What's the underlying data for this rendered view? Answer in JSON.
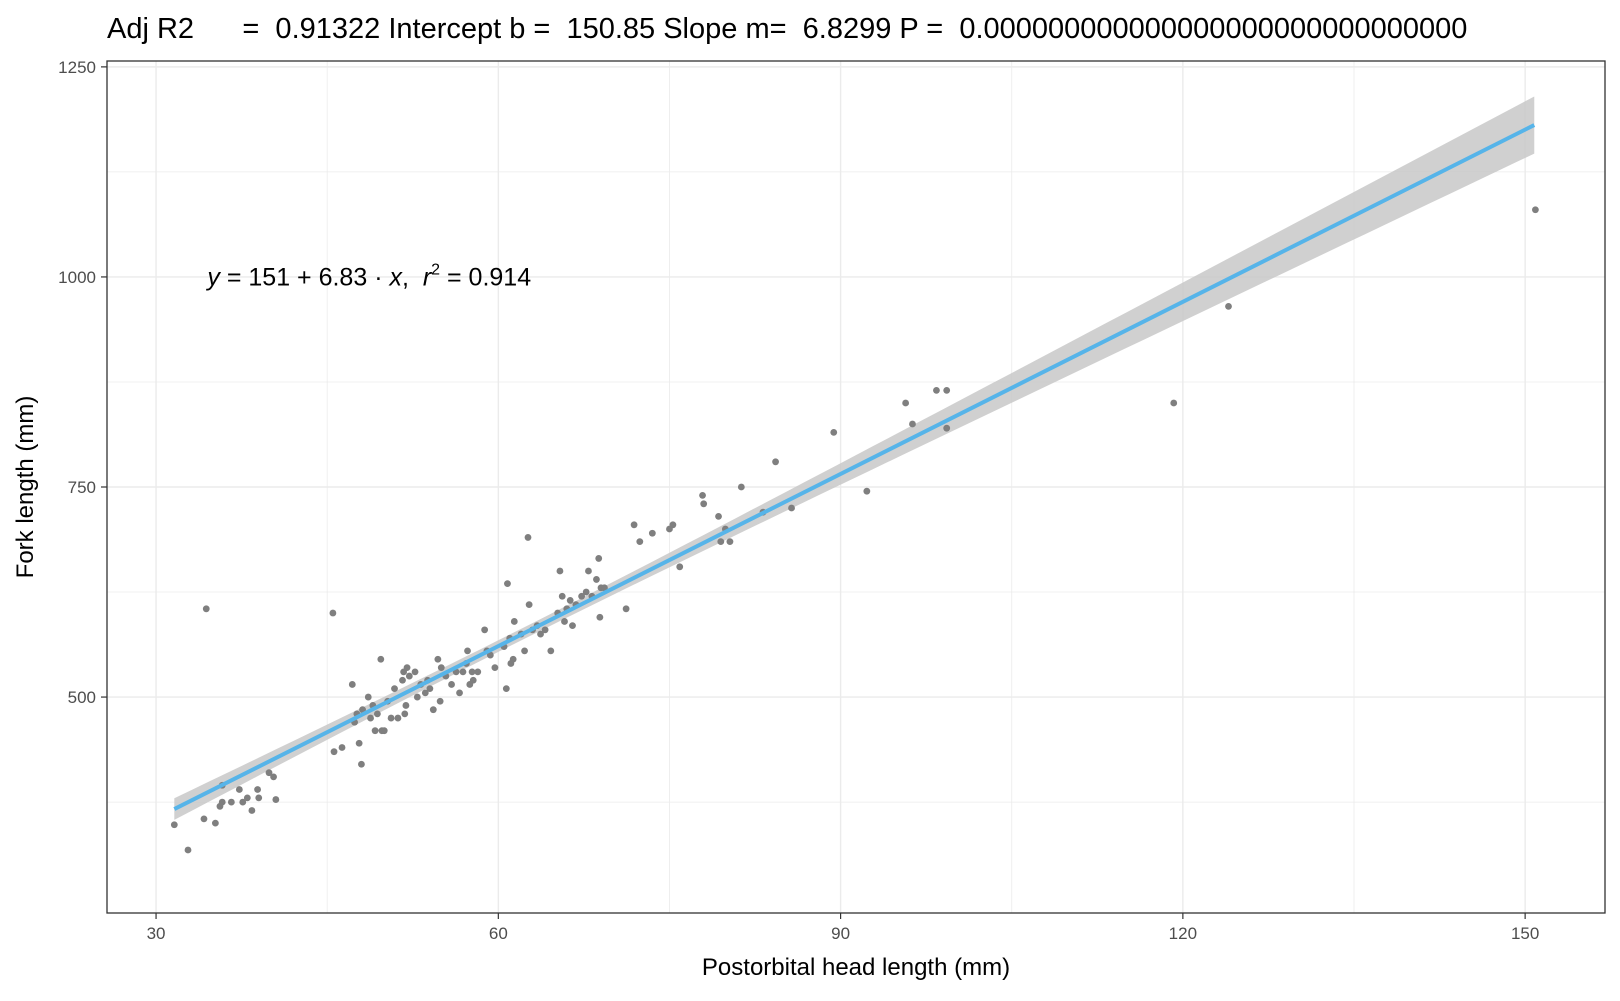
{
  "chart_data": {
    "type": "scatter",
    "title": "Adj R2      =  0.91322 Intercept b =  150.85 Slope m=  6.8299 P =  0.000000000000000000000000000000",
    "xlabel": "Postorbital head length (mm)",
    "ylabel": "Fork length (mm)",
    "xlim": [
      25.7,
      157.0
    ],
    "ylim": [
      243,
      1257
    ],
    "x_ticks": [
      30,
      60,
      90,
      120,
      150
    ],
    "y_ticks": [
      500,
      750,
      1000,
      1250
    ],
    "x_tick_labels": [
      "30",
      "60",
      "90",
      "120",
      "150"
    ],
    "y_tick_labels": [
      "500",
      "750",
      "1000",
      "1250"
    ],
    "x_minor_ticks": [
      45,
      75,
      105,
      135
    ],
    "y_minor_ticks": [
      375,
      625,
      875,
      1125
    ],
    "grid": true,
    "legend": "none",
    "annotation": {
      "y_symbol": "y",
      "eq_rest": " = 151 + 6.83 · ",
      "x_symbol": "x",
      "sep": ",  ",
      "r_symbol": "r",
      "r_exp": "2",
      "r_value": " = 0.914",
      "x": 34.5,
      "y": 990
    },
    "fit": {
      "intercept": 150.85,
      "slope": 6.8299,
      "x_range": [
        31.6,
        150.8
      ]
    },
    "colors": {
      "points": "#7f7f7f",
      "fit_line": "#56b4e9",
      "ribbon": "#c8c8c8",
      "grid": "#ebebeb",
      "panel_border": "#333333"
    },
    "points": [
      {
        "x": 31.6,
        "y": 348
      },
      {
        "x": 32.8,
        "y": 318
      },
      {
        "x": 34.2,
        "y": 355
      },
      {
        "x": 34.4,
        "y": 605
      },
      {
        "x": 35.2,
        "y": 350
      },
      {
        "x": 35.6,
        "y": 370
      },
      {
        "x": 35.8,
        "y": 375
      },
      {
        "x": 35.8,
        "y": 395
      },
      {
        "x": 36.6,
        "y": 375
      },
      {
        "x": 37.3,
        "y": 390
      },
      {
        "x": 37.6,
        "y": 375
      },
      {
        "x": 38.0,
        "y": 380
      },
      {
        "x": 38.4,
        "y": 365
      },
      {
        "x": 38.9,
        "y": 390
      },
      {
        "x": 39.0,
        "y": 380
      },
      {
        "x": 39.9,
        "y": 410
      },
      {
        "x": 40.3,
        "y": 405
      },
      {
        "x": 40.5,
        "y": 378
      },
      {
        "x": 45.5,
        "y": 600
      },
      {
        "x": 45.6,
        "y": 435
      },
      {
        "x": 46.3,
        "y": 440
      },
      {
        "x": 47.2,
        "y": 515
      },
      {
        "x": 47.4,
        "y": 470
      },
      {
        "x": 47.6,
        "y": 480
      },
      {
        "x": 47.8,
        "y": 445
      },
      {
        "x": 48.0,
        "y": 420
      },
      {
        "x": 48.1,
        "y": 485
      },
      {
        "x": 48.6,
        "y": 500
      },
      {
        "x": 48.8,
        "y": 475
      },
      {
        "x": 49.0,
        "y": 490
      },
      {
        "x": 49.2,
        "y": 460
      },
      {
        "x": 49.4,
        "y": 480
      },
      {
        "x": 49.7,
        "y": 545
      },
      {
        "x": 49.8,
        "y": 460
      },
      {
        "x": 50.0,
        "y": 460
      },
      {
        "x": 50.3,
        "y": 495
      },
      {
        "x": 50.6,
        "y": 475
      },
      {
        "x": 50.9,
        "y": 510
      },
      {
        "x": 51.2,
        "y": 475
      },
      {
        "x": 51.6,
        "y": 520
      },
      {
        "x": 51.7,
        "y": 530
      },
      {
        "x": 51.8,
        "y": 480
      },
      {
        "x": 51.9,
        "y": 490
      },
      {
        "x": 52.0,
        "y": 535
      },
      {
        "x": 52.2,
        "y": 525
      },
      {
        "x": 52.7,
        "y": 530
      },
      {
        "x": 52.9,
        "y": 500
      },
      {
        "x": 53.2,
        "y": 515
      },
      {
        "x": 53.6,
        "y": 505
      },
      {
        "x": 53.8,
        "y": 520
      },
      {
        "x": 54.0,
        "y": 510
      },
      {
        "x": 54.3,
        "y": 485
      },
      {
        "x": 54.7,
        "y": 545
      },
      {
        "x": 54.9,
        "y": 495
      },
      {
        "x": 55.0,
        "y": 535
      },
      {
        "x": 55.4,
        "y": 525
      },
      {
        "x": 55.9,
        "y": 515
      },
      {
        "x": 56.3,
        "y": 530
      },
      {
        "x": 56.6,
        "y": 505
      },
      {
        "x": 56.9,
        "y": 530
      },
      {
        "x": 57.2,
        "y": 540
      },
      {
        "x": 57.3,
        "y": 555
      },
      {
        "x": 57.5,
        "y": 515
      },
      {
        "x": 57.7,
        "y": 530
      },
      {
        "x": 57.8,
        "y": 520
      },
      {
        "x": 58.2,
        "y": 530
      },
      {
        "x": 58.8,
        "y": 580
      },
      {
        "x": 59.0,
        "y": 555
      },
      {
        "x": 59.3,
        "y": 550
      },
      {
        "x": 59.7,
        "y": 535
      },
      {
        "x": 60.5,
        "y": 560
      },
      {
        "x": 60.7,
        "y": 510
      },
      {
        "x": 60.8,
        "y": 635
      },
      {
        "x": 61.0,
        "y": 570
      },
      {
        "x": 61.1,
        "y": 540
      },
      {
        "x": 61.3,
        "y": 545
      },
      {
        "x": 61.4,
        "y": 590
      },
      {
        "x": 62.0,
        "y": 575
      },
      {
        "x": 62.3,
        "y": 555
      },
      {
        "x": 62.6,
        "y": 690
      },
      {
        "x": 62.7,
        "y": 610
      },
      {
        "x": 63.0,
        "y": 580
      },
      {
        "x": 63.4,
        "y": 585
      },
      {
        "x": 63.7,
        "y": 575
      },
      {
        "x": 64.1,
        "y": 580
      },
      {
        "x": 64.6,
        "y": 555
      },
      {
        "x": 65.2,
        "y": 600
      },
      {
        "x": 65.4,
        "y": 650
      },
      {
        "x": 65.6,
        "y": 620
      },
      {
        "x": 65.8,
        "y": 590
      },
      {
        "x": 66.0,
        "y": 605
      },
      {
        "x": 66.3,
        "y": 615
      },
      {
        "x": 66.5,
        "y": 585
      },
      {
        "x": 66.8,
        "y": 610
      },
      {
        "x": 67.3,
        "y": 620
      },
      {
        "x": 67.7,
        "y": 625
      },
      {
        "x": 67.9,
        "y": 650
      },
      {
        "x": 68.2,
        "y": 620
      },
      {
        "x": 68.6,
        "y": 640
      },
      {
        "x": 68.8,
        "y": 665
      },
      {
        "x": 68.9,
        "y": 595
      },
      {
        "x": 69.0,
        "y": 630
      },
      {
        "x": 69.3,
        "y": 630
      },
      {
        "x": 71.2,
        "y": 605
      },
      {
        "x": 71.9,
        "y": 705
      },
      {
        "x": 72.4,
        "y": 685
      },
      {
        "x": 73.5,
        "y": 695
      },
      {
        "x": 75.0,
        "y": 700
      },
      {
        "x": 75.3,
        "y": 705
      },
      {
        "x": 75.9,
        "y": 655
      },
      {
        "x": 77.9,
        "y": 740
      },
      {
        "x": 78.0,
        "y": 730
      },
      {
        "x": 79.3,
        "y": 715
      },
      {
        "x": 79.5,
        "y": 685
      },
      {
        "x": 79.9,
        "y": 700
      },
      {
        "x": 80.3,
        "y": 685
      },
      {
        "x": 81.3,
        "y": 750
      },
      {
        "x": 83.2,
        "y": 720
      },
      {
        "x": 84.3,
        "y": 780
      },
      {
        "x": 85.7,
        "y": 725
      },
      {
        "x": 89.4,
        "y": 815
      },
      {
        "x": 92.3,
        "y": 745
      },
      {
        "x": 95.7,
        "y": 850
      },
      {
        "x": 96.3,
        "y": 825
      },
      {
        "x": 98.4,
        "y": 865
      },
      {
        "x": 99.3,
        "y": 865
      },
      {
        "x": 99.3,
        "y": 820
      },
      {
        "x": 119.2,
        "y": 850
      },
      {
        "x": 124.0,
        "y": 965
      },
      {
        "x": 150.9,
        "y": 1080
      }
    ]
  }
}
